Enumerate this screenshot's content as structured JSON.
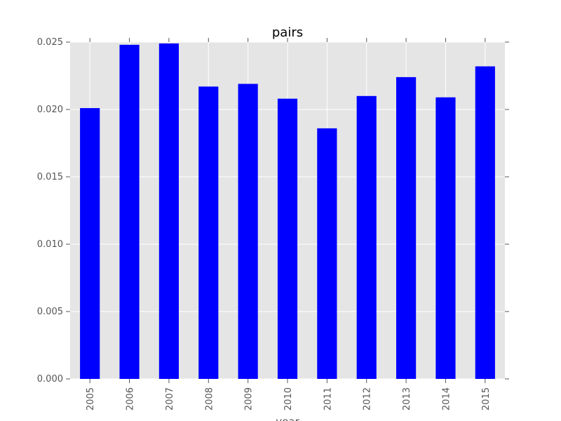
{
  "chart_data": {
    "type": "bar",
    "title": "pairs",
    "xlabel": "year",
    "ylabel": "",
    "categories": [
      "2005",
      "2006",
      "2007",
      "2008",
      "2009",
      "2010",
      "2011",
      "2012",
      "2013",
      "2014",
      "2015"
    ],
    "series": [
      {
        "values": [
          0.0201,
          0.0248,
          0.0249,
          0.0217,
          0.0219,
          0.0208,
          0.0186,
          0.021,
          0.0224,
          0.0209,
          0.0232
        ]
      }
    ],
    "ylim": [
      0,
      0.025
    ],
    "yticks": [
      "0.000",
      "0.005",
      "0.010",
      "0.015",
      "0.020",
      "0.025"
    ],
    "grid": true,
    "legend": "none",
    "colors": {
      "bar": "#0000ff",
      "plot_background": "#e5e5e5",
      "grid": "#ffffff",
      "tick_label": "#555555",
      "title": "#000000"
    }
  }
}
